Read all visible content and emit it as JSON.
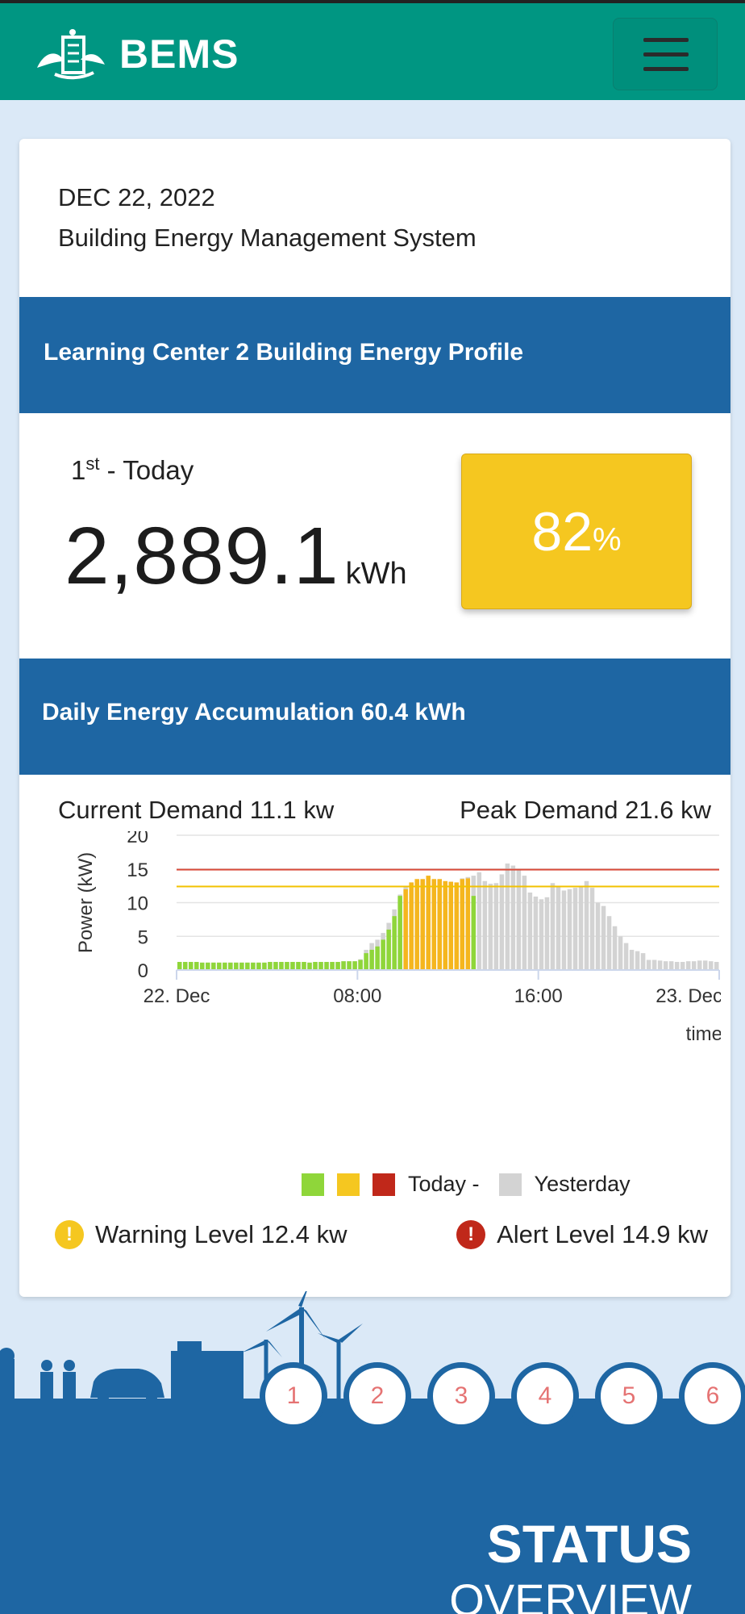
{
  "header": {
    "brand": "BEMS"
  },
  "card": {
    "date": "DEC 22, 2022",
    "subtitle": "Building Energy Management System",
    "profile_title": "Learning Center 2 Building Energy Profile",
    "rank_number": "1",
    "rank_suffix": "st",
    "rank_label": "- Today",
    "energy_value": "2,889.1",
    "energy_unit": "kWh",
    "percent_value": "82",
    "percent_sign": "%",
    "accumulation_title": "Daily Energy Accumulation 60.4 kWh",
    "current_demand": "Current  Demand 11.1  kw",
    "peak_demand": "Peak Demand 21.6  kw",
    "legend_today": "Today -",
    "legend_yesterday": "Yesterday",
    "warning_level": "Warning Level 12.4  kw",
    "alert_level": "Alert Level 14.9  kw"
  },
  "colors": {
    "green": "#8fd63a",
    "orange": "#f5b61e",
    "red": "#c0281a",
    "gray": "#d3d3d3",
    "warning_line": "#f2c200",
    "alert_line": "#d94b3a"
  },
  "chart_data": {
    "type": "bar",
    "ylabel": "Power (kW)",
    "xlabel": "time",
    "ylim": [
      0,
      20
    ],
    "y_ticks": [
      0,
      5,
      10,
      15,
      20
    ],
    "x_tick_labels": [
      "22. Dec",
      "08:00",
      "16:00",
      "23. Dec"
    ],
    "x_tick_hours": [
      0,
      8,
      16,
      24
    ],
    "x_range_hours": [
      0,
      24
    ],
    "bar_hours": 0.25,
    "thresholds": {
      "warning": 12.4,
      "alert": 14.9
    },
    "series": [
      {
        "name": "Today",
        "values": [
          1.2,
          1.2,
          1.2,
          1.2,
          1.1,
          1.1,
          1.1,
          1.1,
          1.1,
          1.1,
          1.1,
          1.1,
          1.1,
          1.1,
          1.1,
          1.1,
          1.2,
          1.2,
          1.2,
          1.2,
          1.2,
          1.2,
          1.2,
          1.1,
          1.2,
          1.2,
          1.2,
          1.2,
          1.2,
          1.3,
          1.3,
          1.3,
          1.5,
          2.5,
          3,
          3.5,
          4.5,
          6,
          8,
          11,
          12,
          13,
          13.5,
          13.5,
          14,
          13.5,
          13.5,
          13.2,
          13.1,
          13,
          13.5,
          13.6,
          11
        ],
        "colors": [
          "green",
          "green",
          "green",
          "green",
          "green",
          "green",
          "green",
          "green",
          "green",
          "green",
          "green",
          "green",
          "green",
          "green",
          "green",
          "green",
          "green",
          "green",
          "green",
          "green",
          "green",
          "green",
          "green",
          "green",
          "green",
          "green",
          "green",
          "green",
          "green",
          "green",
          "green",
          "green",
          "green",
          "green",
          "green",
          "green",
          "green",
          "green",
          "green",
          "green",
          "orange",
          "orange",
          "orange",
          "orange",
          "orange",
          "orange",
          "orange",
          "orange",
          "orange",
          "orange",
          "orange",
          "orange",
          "green"
        ]
      },
      {
        "name": "Yesterday",
        "values": [
          1.2,
          1.2,
          1.2,
          1.2,
          1.1,
          1.1,
          1.1,
          1.1,
          1.1,
          1.1,
          1.1,
          1.1,
          1.1,
          1.1,
          1.1,
          1.1,
          1.2,
          1.2,
          1.2,
          1.2,
          1.2,
          1.2,
          1.2,
          1.1,
          1.2,
          1.2,
          1.2,
          1.2,
          1.2,
          1.3,
          1.3,
          1.3,
          1.6,
          3,
          4,
          4.5,
          5.5,
          7,
          9,
          11.2,
          12.5,
          13,
          13.2,
          13.4,
          13.6,
          13.4,
          13.3,
          13.1,
          13.1,
          13,
          13.6,
          13.8,
          14,
          14.5,
          13.2,
          12.8,
          12.9,
          14.2,
          15.8,
          15.5,
          14.8,
          14,
          11.5,
          10.9,
          10.5,
          10.8,
          12.9,
          12.4,
          11.8,
          12,
          12.2,
          12.4,
          13.2,
          12.2,
          10,
          9.5,
          8,
          6.5,
          5,
          4,
          3,
          2.8,
          2.5,
          1.5,
          1.5,
          1.4,
          1.3,
          1.3,
          1.2,
          1.2,
          1.3,
          1.3,
          1.4,
          1.4,
          1.3,
          1.2
        ]
      }
    ]
  },
  "pager": [
    "1",
    "2",
    "3",
    "4",
    "5",
    "6"
  ],
  "status": {
    "title": "STATUS",
    "subtitle": "OVERVIEW"
  }
}
